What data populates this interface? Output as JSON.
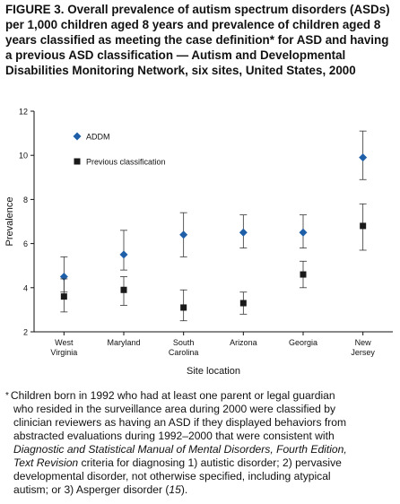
{
  "title": "FIGURE 3. Overall prevalence of autism spectrum disorders (ASDs) per 1,000 children aged 8 years and prevalence of children aged 8 years classified as meeting the case definition* for ASD and having a previous ASD classification — Autism and Developmental Disabilities Monitoring Network, six sites, United States, 2000",
  "chart_data": {
    "type": "scatter",
    "title": "",
    "xlabel": "Site location",
    "ylabel": "Prevalence",
    "ylim": [
      2,
      12
    ],
    "yticks": [
      "2",
      "4",
      "6",
      "8",
      "10",
      "12"
    ],
    "categories": [
      [
        "West",
        "Virginia"
      ],
      [
        "Maryland"
      ],
      [
        "South",
        "Carolina"
      ],
      [
        "Arizona"
      ],
      [
        "Georgia"
      ],
      [
        "New",
        "Jersey"
      ]
    ],
    "legend_position": "top-left",
    "series": [
      {
        "name": "ADDM",
        "marker": "diamond",
        "color": "#1f5fa8",
        "values": [
          4.5,
          5.5,
          6.4,
          6.5,
          6.5,
          9.9
        ],
        "ci_low": [
          3.8,
          4.8,
          5.4,
          5.8,
          5.8,
          8.9
        ],
        "ci_high": [
          5.4,
          6.6,
          7.4,
          7.3,
          7.3,
          11.1
        ]
      },
      {
        "name": "Previous classification",
        "marker": "square",
        "color": "#1a1a1a",
        "values": [
          3.6,
          3.9,
          3.1,
          3.3,
          4.6,
          6.8
        ],
        "ci_low": [
          2.9,
          3.2,
          2.5,
          2.8,
          4.0,
          5.7
        ],
        "ci_high": [
          4.4,
          4.5,
          3.9,
          3.8,
          5.2,
          7.8
        ]
      }
    ]
  },
  "footnote": {
    "marker": "*",
    "lines": [
      "Children born in 1992 who had at least one parent or legal guardian",
      "who resided in the surveillance area during 2000 were classified by",
      "clinician reviewers as having an ASD if they displayed behaviors from",
      "abstracted evaluations during 1992–2000 that were consistent with",
      "Diagnostic and Statistical Manual of Mental Disorders, Fourth Edition,",
      "Text Revision  criteria for diagnosing 1) autistic disorder; 2) pervasive",
      "developmental disorder, not otherwise specified, including atypical",
      "autism; or 3) Asperger disorder (15)."
    ]
  }
}
